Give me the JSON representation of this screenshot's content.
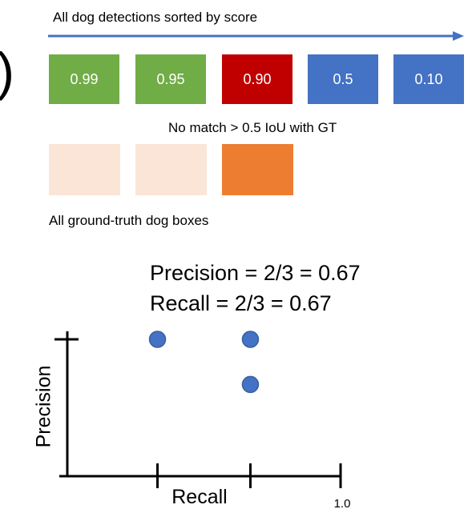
{
  "detections_caption": "All dog detections sorted by score",
  "partial_paren": ")",
  "detections": [
    {
      "score": "0.99",
      "color": "#70AD47"
    },
    {
      "score": "0.95",
      "color": "#70AD47"
    },
    {
      "score": "0.90",
      "color": "#C00000"
    },
    {
      "score": "0.5",
      "color": "#4472C4"
    },
    {
      "score": "0.10",
      "color": "#4472C4"
    }
  ],
  "no_match_note": "No match > 0.5 IoU with GT",
  "ground_truth_boxes": [
    {
      "color": "#FBE5D6"
    },
    {
      "color": "#FBE5D6"
    },
    {
      "color": "#ED7D31"
    }
  ],
  "gt_caption": "All ground-truth dog boxes",
  "metrics": {
    "precision_text": "Precision = 2/3 = 0.67",
    "recall_text": "Recall = 2/3 = 0.67"
  },
  "chart_data": {
    "type": "scatter",
    "xlabel": "Recall",
    "ylabel": "Precision",
    "xlim": [
      0,
      1.0
    ],
    "ylim": [
      0,
      1.0
    ],
    "x_tick_labels": [
      "",
      "",
      "1.0"
    ],
    "x_ticks": [
      0.33,
      0.67,
      1.0
    ],
    "y_ticks": [
      1.0
    ],
    "points": [
      {
        "x": 0.33,
        "y": 1.0
      },
      {
        "x": 0.67,
        "y": 1.0
      },
      {
        "x": 0.67,
        "y": 0.67
      }
    ],
    "point_color": "#4472C4",
    "grid": false
  }
}
